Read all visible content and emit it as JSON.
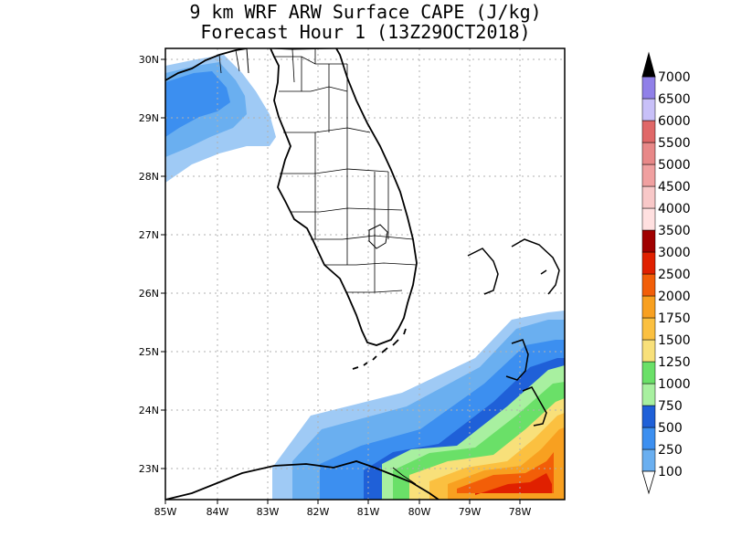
{
  "title": {
    "line1": "9 km WRF ARW Surface CAPE (J/kg)",
    "line2": "Forecast Hour 1 (13Z29OCT2018)"
  },
  "axes": {
    "lon_ticks": [
      "85W",
      "84W",
      "83W",
      "82W",
      "81W",
      "80W",
      "79W",
      "78W"
    ],
    "lat_ticks": [
      "30N",
      "29N",
      "28N",
      "27N",
      "26N",
      "25N",
      "24N",
      "23N"
    ]
  },
  "colorbar": {
    "levels": [
      "100",
      "250",
      "500",
      "750",
      "1000",
      "1250",
      "1500",
      "1750",
      "2000",
      "2500",
      "3000",
      "3500",
      "4000",
      "4500",
      "5000",
      "5500",
      "6000",
      "6500",
      "7000"
    ],
    "colors": [
      "#9fcaf5",
      "#6aaff0",
      "#3c8ff0",
      "#1f60d8",
      "#a8f0a0",
      "#6ae068",
      "#f8e07a",
      "#fbc040",
      "#f8a020",
      "#f25e08",
      "#e02000",
      "#a00000",
      "#ffe0e0",
      "#f8c8c8",
      "#f0a0a0",
      "#e88888",
      "#e06868",
      "#c8c0f8",
      "#9080e8",
      "#7868d8",
      "#5040c0"
    ]
  },
  "colors": {
    "frame": "#000000",
    "grid": "#b0b0b0"
  }
}
